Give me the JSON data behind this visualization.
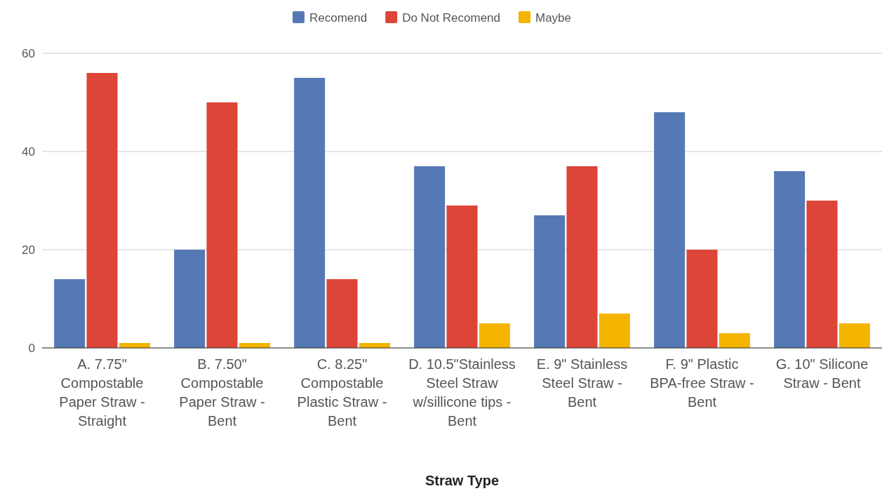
{
  "chart_data": {
    "type": "bar",
    "xlabel": "Straw Type",
    "categories": [
      "A. 7.75\" Compostable Paper Straw - Straight",
      "B. 7.50\" Compostable Paper Straw - Bent",
      "C. 8.25\" Compostable Plastic Straw - Bent",
      "D. 10.5\"Stainless Steel Straw w/sillicone tips - Bent",
      "E. 9\" Stainless Steel Straw - Bent",
      "F. 9\" Plastic BPA-free Straw - Bent",
      "G. 10\" Silicone Straw - Bent"
    ],
    "series": [
      {
        "name": "Recomend",
        "color": "#5579b5",
        "values": [
          14,
          20,
          55,
          37,
          27,
          48,
          36
        ]
      },
      {
        "name": "Do Not Recomend",
        "color": "#dc4537",
        "values": [
          56,
          50,
          14,
          29,
          37,
          20,
          30
        ]
      },
      {
        "name": "Maybe",
        "color": "#f4b400",
        "values": [
          1,
          1,
          1,
          5,
          7,
          3,
          5
        ]
      }
    ],
    "ylim": [
      0,
      60
    ],
    "yticks": [
      0,
      20,
      40,
      60
    ],
    "grid": "y",
    "legend": "top"
  }
}
